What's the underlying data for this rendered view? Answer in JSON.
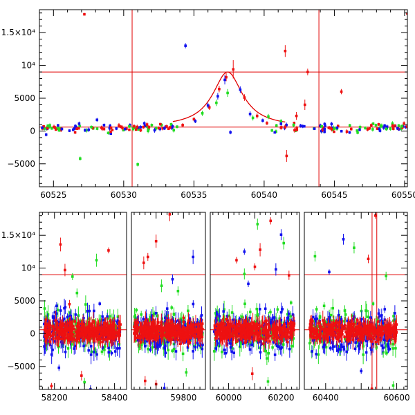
{
  "colors": {
    "red": "#ee1111",
    "green": "#22dd22",
    "blue": "#1111ee",
    "refline": "#e00000"
  },
  "chart_data": [
    {
      "type": "scatter",
      "panel": "top",
      "xlim": [
        60524,
        60550.2
      ],
      "ylim": [
        -8500,
        18500
      ],
      "xticks": [
        {
          "v": 60525,
          "label": "60525"
        },
        {
          "v": 60530,
          "label": "60530"
        },
        {
          "v": 60535,
          "label": "60535"
        },
        {
          "v": 60540,
          "label": "60540"
        },
        {
          "v": 60545,
          "label": "60545"
        },
        {
          "v": 60550,
          "label": "60550"
        }
      ],
      "yticks": [
        {
          "v": 15000,
          "label": "1.5×10⁴"
        },
        {
          "v": 10000,
          "label": "10⁴"
        },
        {
          "v": 5000,
          "label": "5000"
        },
        {
          "v": 0,
          "label": "0"
        },
        {
          "v": -5000,
          "label": "−5000"
        }
      ],
      "hlines": [
        9000,
        600
      ],
      "vlines": [
        60530.6,
        60543.9
      ],
      "fit": {
        "model": "peak",
        "x0": 60537.4,
        "baseline": 600,
        "peak": 9000,
        "width": 1.3,
        "range": [
          60533.5,
          60541.5
        ]
      },
      "series": [
        {
          "color": "red",
          "points": [
            [
              60524.3,
              700,
              200
            ],
            [
              60525.1,
              550,
              200
            ],
            [
              60526.8,
              400,
              200
            ],
            [
              60527.2,
              17800,
              200
            ],
            [
              60528.6,
              300,
              250
            ],
            [
              60529.1,
              500,
              250
            ],
            [
              60529.8,
              650,
              250
            ],
            [
              60530.2,
              350,
              250
            ],
            [
              60531.4,
              600,
              250
            ],
            [
              60532.5,
              450,
              250
            ],
            [
              60533.3,
              550,
              250
            ],
            [
              60534.2,
              900,
              300
            ],
            [
              60535.0,
              1800,
              300
            ],
            [
              60536.1,
              3600,
              400
            ],
            [
              60536.8,
              6400,
              500
            ],
            [
              60537.3,
              8200,
              600
            ],
            [
              60537.8,
              9400,
              1400
            ],
            [
              60538.6,
              5100,
              500
            ],
            [
              60539.5,
              2300,
              400
            ],
            [
              60540.2,
              1200,
              300
            ],
            [
              60541.2,
              500,
              300
            ],
            [
              60541.5,
              12200,
              900
            ],
            [
              60541.6,
              -3800,
              900
            ],
            [
              60542.3,
              2300,
              600
            ],
            [
              60542.9,
              4000,
              800
            ],
            [
              60543.1,
              9000,
              500
            ],
            [
              60544.6,
              500,
              250
            ],
            [
              60545.5,
              6000,
              400
            ],
            [
              60546.2,
              300,
              250
            ],
            [
              60547.5,
              400,
              250
            ],
            [
              60549.2,
              350,
              250
            ],
            [
              60550.2,
              17900,
              300
            ]
          ]
        },
        {
          "color": "green",
          "points": [
            [
              60524.6,
              800,
              250
            ],
            [
              60525.4,
              100,
              250
            ],
            [
              60526.9,
              -4200,
              300
            ],
            [
              60527.7,
              600,
              250
            ],
            [
              60528.9,
              -300,
              250
            ],
            [
              60530.4,
              700,
              250
            ],
            [
              60531.0,
              -5100,
              300
            ],
            [
              60532.0,
              900,
              250
            ],
            [
              60533.8,
              650,
              250
            ],
            [
              60535.6,
              2700,
              400
            ],
            [
              60536.6,
              4300,
              500
            ],
            [
              60537.4,
              5800,
              600
            ],
            [
              60539.2,
              2000,
              400
            ],
            [
              60540.3,
              2200,
              400
            ],
            [
              60541.2,
              1500,
              300
            ],
            [
              60542.1,
              900,
              300
            ],
            [
              60544.1,
              700,
              250
            ],
            [
              60545.0,
              400,
              250
            ],
            [
              60546.1,
              850,
              250
            ],
            [
              60547.2,
              450,
              250
            ],
            [
              60548.7,
              300,
              250
            ],
            [
              60549.8,
              700,
              250
            ]
          ]
        },
        {
          "color": "blue",
          "points": [
            [
              60524.2,
              500,
              250
            ],
            [
              60525.6,
              300,
              250
            ],
            [
              60526.4,
              200,
              250
            ],
            [
              60528.1,
              1700,
              300
            ],
            [
              60528.6,
              900,
              250
            ],
            [
              60530.1,
              300,
              250
            ],
            [
              60532.9,
              400,
              250
            ],
            [
              60534.4,
              13000,
              400
            ],
            [
              60535.1,
              1500,
              300
            ],
            [
              60536.0,
              3900,
              400
            ],
            [
              60536.7,
              5300,
              500
            ],
            [
              60537.2,
              7800,
              700
            ],
            [
              60537.6,
              -200,
              300
            ],
            [
              60538.3,
              6300,
              500
            ],
            [
              60539.0,
              2600,
              400
            ],
            [
              60539.9,
              1600,
              300
            ],
            [
              60541.2,
              1100,
              300
            ],
            [
              60542.6,
              800,
              300
            ],
            [
              60544.3,
              300,
              250
            ],
            [
              60545.2,
              500,
              250
            ],
            [
              60546.8,
              200,
              250
            ],
            [
              60548.2,
              300,
              250
            ],
            [
              60549.5,
              400,
              250
            ]
          ]
        }
      ]
    },
    {
      "type": "scatter",
      "panel": "bottom",
      "segments": [
        {
          "xlim": [
            58150,
            58440
          ]
        },
        {
          "xlim": [
            59610,
            59880
          ]
        },
        {
          "xlim": [
            59930,
            60270
          ]
        },
        {
          "xlim": [
            60340,
            60630
          ]
        }
      ],
      "ylim": [
        -8500,
        18500
      ],
      "xticks": [
        {
          "v": 58200,
          "label": "58200"
        },
        {
          "v": 58400,
          "label": "58400"
        },
        {
          "v": 59800,
          "label": "59800"
        },
        {
          "v": 60000,
          "label": "60000"
        },
        {
          "v": 60200,
          "label": "60200"
        },
        {
          "v": 60400,
          "label": "60400"
        },
        {
          "v": 60600,
          "label": "60600"
        }
      ],
      "yticks": [
        {
          "v": 15000,
          "label": "1.5×10⁴"
        },
        {
          "v": 10000,
          "label": "10⁴"
        },
        {
          "v": 5000,
          "label": "5000"
        },
        {
          "v": 0,
          "label": "0"
        },
        {
          "v": -5000,
          "label": "−5000"
        }
      ],
      "hlines": [
        9000,
        600
      ],
      "vlines": [
        60530.6,
        60543.9
      ],
      "clusters": [
        {
          "xlim": [
            58165,
            58420
          ],
          "outliers": [
            [
              "red",
              58190,
              -8000
            ],
            [
              "red",
              58220,
              13600
            ],
            [
              "red",
              58235,
              9700
            ],
            [
              "green",
              58260,
              8700
            ],
            [
              "red",
              58380,
              12700
            ],
            [
              "green",
              58340,
              11200
            ],
            [
              "blue",
              58215,
              -5200
            ],
            [
              "green",
              58300,
              -7400
            ],
            [
              "red",
              58290,
              -6400
            ],
            [
              "blue",
              58320,
              -8500
            ],
            [
              "green",
              58275,
              6200
            ],
            [
              "red",
              58250,
              4500
            ]
          ]
        },
        {
          "xlim": [
            59620,
            59870
          ],
          "outliers": [
            [
              "red",
              59700,
              14100
            ],
            [
              "red",
              59750,
              18200
            ],
            [
              "red",
              59655,
              10800
            ],
            [
              "red",
              59670,
              11700
            ],
            [
              "blue",
              59835,
              11700
            ],
            [
              "green",
              59720,
              7300
            ],
            [
              "green",
              59780,
              6500
            ],
            [
              "red",
              59660,
              -7200
            ],
            [
              "red",
              59700,
              -7700
            ],
            [
              "blue",
              59730,
              -8300
            ],
            [
              "green",
              59810,
              -5900
            ],
            [
              "blue",
              59760,
              8300
            ]
          ]
        },
        {
          "xlim": [
            59945,
            60250
          ],
          "outliers": [
            [
              "red",
              60030,
              11200
            ],
            [
              "blue",
              60060,
              12500
            ],
            [
              "green",
              60110,
              16700
            ],
            [
              "red",
              60120,
              12800
            ],
            [
              "red",
              60160,
              17200
            ],
            [
              "blue",
              60200,
              15100
            ],
            [
              "green",
              60210,
              13800
            ],
            [
              "green",
              60060,
              9100
            ],
            [
              "red",
              60100,
              10200
            ],
            [
              "blue",
              60075,
              7600
            ],
            [
              "green",
              60150,
              -7300
            ],
            [
              "red",
              60090,
              -6100
            ],
            [
              "blue",
              60180,
              9800
            ],
            [
              "red",
              60230,
              8900
            ]
          ]
        },
        {
          "xlim": [
            60355,
            60600
          ],
          "outliers": [
            [
              "blue",
              60450,
              14400
            ],
            [
              "green",
              60480,
              13100
            ],
            [
              "green",
              60370,
              11800
            ],
            [
              "red",
              60520,
              11400
            ],
            [
              "blue",
              60410,
              9400
            ],
            [
              "green",
              60570,
              8800
            ],
            [
              "red",
              60540,
              18000
            ],
            [
              "blue",
              60500,
              -5700
            ],
            [
              "green",
              60590,
              -7900
            ],
            [
              "red",
              60530,
              -8400
            ]
          ]
        }
      ]
    }
  ]
}
